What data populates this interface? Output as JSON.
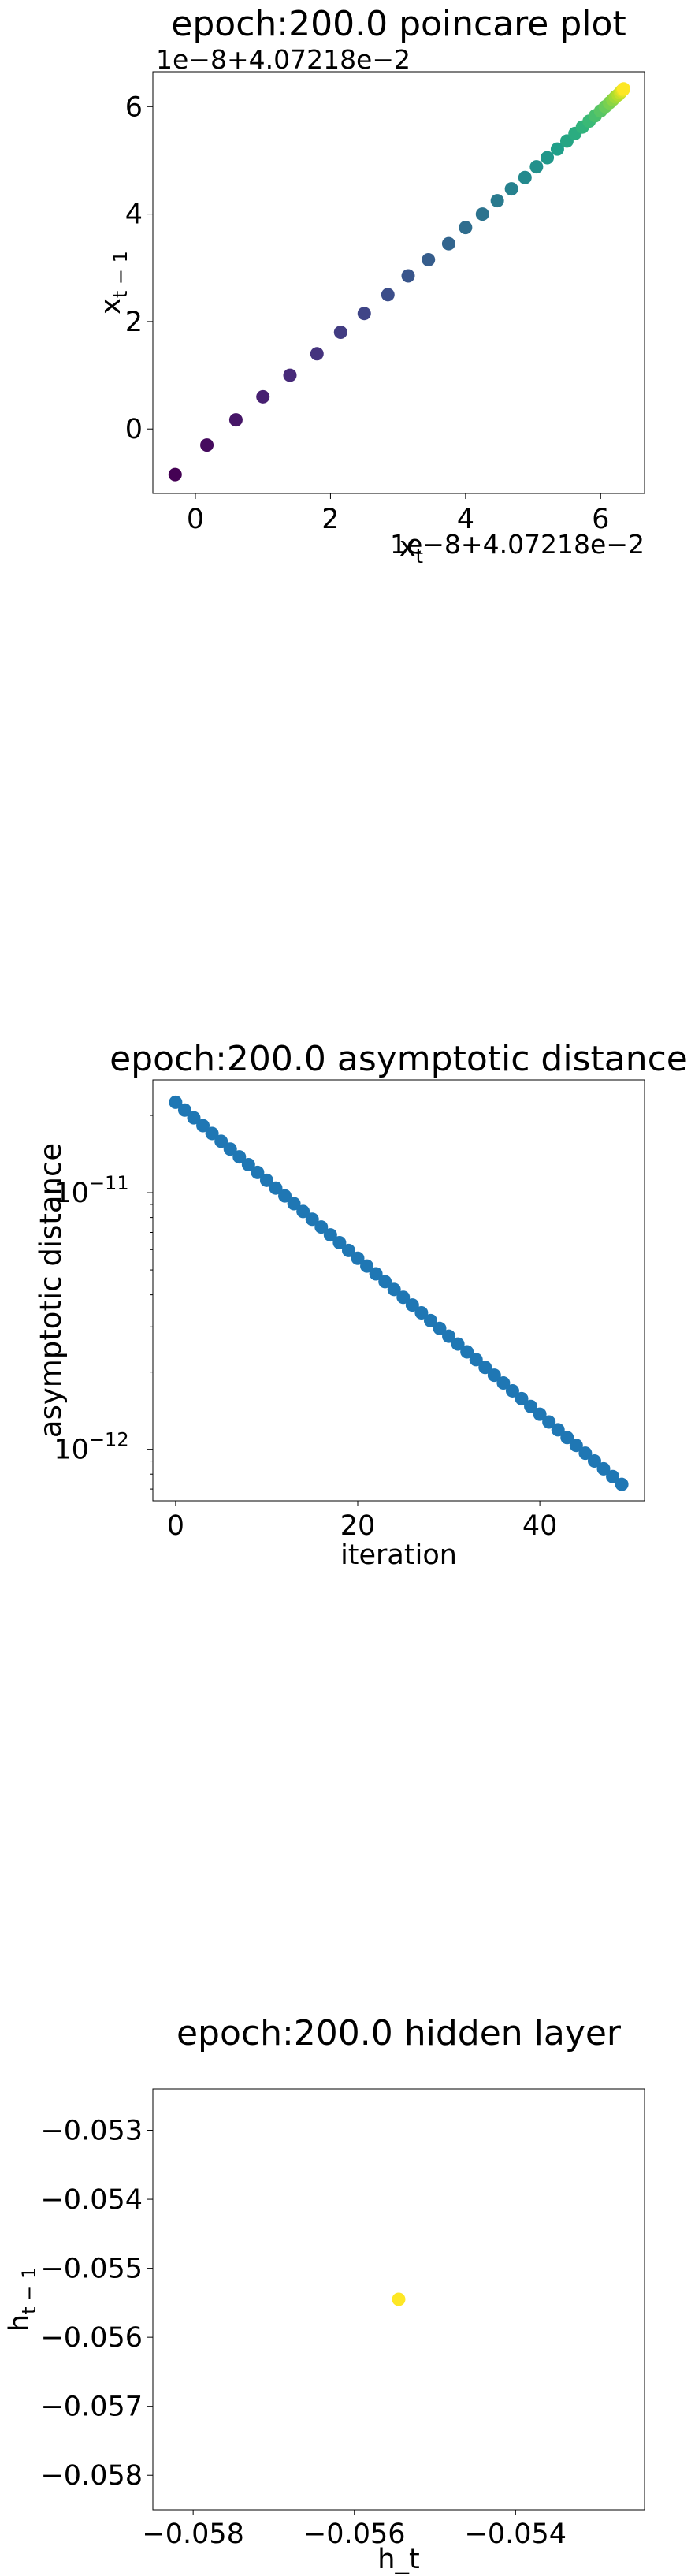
{
  "chart_data": [
    {
      "type": "scatter",
      "title": "epoch:200.0 poincare plot",
      "xlabel": "x_t",
      "ylabel": "x_{t-1}",
      "x_offset_label": "1e−8+4.07218e−2",
      "y_offset_label": "1e−8+4.07218e−2",
      "x_ticks": [
        "0",
        "2",
        "4",
        "6"
      ],
      "y_ticks": [
        "0",
        "2",
        "4",
        "6"
      ],
      "xlim": [
        -0.63,
        6.65
      ],
      "ylim": [
        -1.2,
        6.65
      ],
      "colormap": "viridis",
      "x": [
        -0.3,
        0.17,
        0.6,
        1.0,
        1.4,
        1.8,
        2.15,
        2.5,
        2.85,
        3.15,
        3.45,
        3.75,
        4.0,
        4.25,
        4.47,
        4.68,
        4.88,
        5.05,
        5.21,
        5.36,
        5.5,
        5.62,
        5.73,
        5.83,
        5.92,
        6.0,
        6.07,
        6.13,
        6.18,
        6.22,
        6.26,
        6.29,
        6.31,
        6.33,
        6.34
      ],
      "y": [
        -0.85,
        -0.3,
        0.17,
        0.6,
        1.0,
        1.4,
        1.8,
        2.15,
        2.5,
        2.85,
        3.15,
        3.45,
        3.75,
        4.0,
        4.25,
        4.47,
        4.68,
        4.88,
        5.05,
        5.21,
        5.36,
        5.5,
        5.62,
        5.73,
        5.83,
        5.92,
        6.0,
        6.07,
        6.13,
        6.18,
        6.22,
        6.26,
        6.29,
        6.31,
        6.33
      ],
      "grid": false
    },
    {
      "type": "scatter",
      "title": "epoch:200.0 asymptotic distance",
      "xlabel": "iteration",
      "ylabel": "asymptotic distance",
      "yscale": "log",
      "x_ticks": [
        "0",
        "20",
        "40"
      ],
      "y_major_ticks": [
        {
          "value": 1e-11,
          "base": "10",
          "exp": "−11"
        },
        {
          "value": 1e-12,
          "base": "10",
          "exp": "−12"
        }
      ],
      "xlim": [
        -2.5,
        51.5
      ],
      "ylim": [
        6.3e-13,
        2.75e-11
      ],
      "x_start": 0,
      "x_end": 49,
      "y_start": 2.25e-11,
      "y_end": 7.3e-13,
      "color": "#1f77b4",
      "grid": false
    },
    {
      "type": "scatter",
      "title": "epoch:200.0 hidden layer",
      "xlabel": "h_t",
      "ylabel": "h_{t-1}",
      "x_ticks": [
        "−0.058",
        "−0.056",
        "−0.054"
      ],
      "y_ticks": [
        "−0.053",
        "−0.054",
        "−0.055",
        "−0.056",
        "−0.057",
        "−0.058"
      ],
      "x_tick_values": [
        -0.058,
        -0.056,
        -0.054
      ],
      "y_tick_values": [
        -0.053,
        -0.054,
        -0.055,
        -0.056,
        -0.057,
        -0.058
      ],
      "xlim": [
        -0.0585,
        -0.0524
      ],
      "ylim": [
        -0.0585,
        -0.0524
      ],
      "x": [
        -0.05545
      ],
      "y": [
        -0.05545
      ],
      "color": "#fde725",
      "grid": false
    }
  ]
}
